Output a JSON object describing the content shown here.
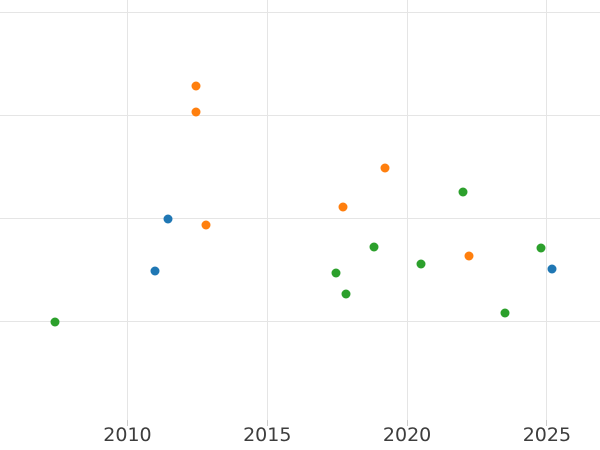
{
  "chart_data": {
    "type": "scatter",
    "title": "",
    "xlabel": "",
    "ylabel": "",
    "grid": true,
    "legend": false,
    "background_color": "#ffffff",
    "gridline_color": "#e5e5e5",
    "tick_mark_color": "#cccccc",
    "tick_label_color": "#3d3d3d",
    "x_axis": {
      "tick_values": [
        2010,
        2015,
        2020,
        2025
      ],
      "tick_labels": [
        "2010",
        "2015",
        "2020",
        "2025"
      ],
      "range": [
        2005.44,
        2026.9
      ]
    },
    "y_axis": {
      "tick_labels": [],
      "gridline_values": [
        0,
        1,
        2,
        3
      ],
      "range": [
        -0.95,
        3.12
      ]
    },
    "marker_size_px": 9,
    "series": [
      {
        "name": "blue-series",
        "color": "#1f77b4",
        "points": [
          {
            "x": 2011.0,
            "y": 0.49
          },
          {
            "x": 2011.45,
            "y": 1.0
          },
          {
            "x": 2025.2,
            "y": 0.51
          }
        ]
      },
      {
        "name": "orange-series",
        "color": "#ff7f0e",
        "points": [
          {
            "x": 2012.45,
            "y": 2.29
          },
          {
            "x": 2012.45,
            "y": 2.03
          },
          {
            "x": 2012.8,
            "y": 0.94
          },
          {
            "x": 2017.7,
            "y": 1.11
          },
          {
            "x": 2019.2,
            "y": 1.49
          },
          {
            "x": 2022.2,
            "y": 0.64
          }
        ]
      },
      {
        "name": "green-series",
        "color": "#2ca02c",
        "points": [
          {
            "x": 2007.4,
            "y": 0.0
          },
          {
            "x": 2017.45,
            "y": 0.47
          },
          {
            "x": 2017.8,
            "y": 0.27
          },
          {
            "x": 2018.8,
            "y": 0.73
          },
          {
            "x": 2020.5,
            "y": 0.56
          },
          {
            "x": 2022.0,
            "y": 1.26
          },
          {
            "x": 2023.5,
            "y": 0.09
          },
          {
            "x": 2024.8,
            "y": 0.72
          }
        ]
      }
    ]
  }
}
